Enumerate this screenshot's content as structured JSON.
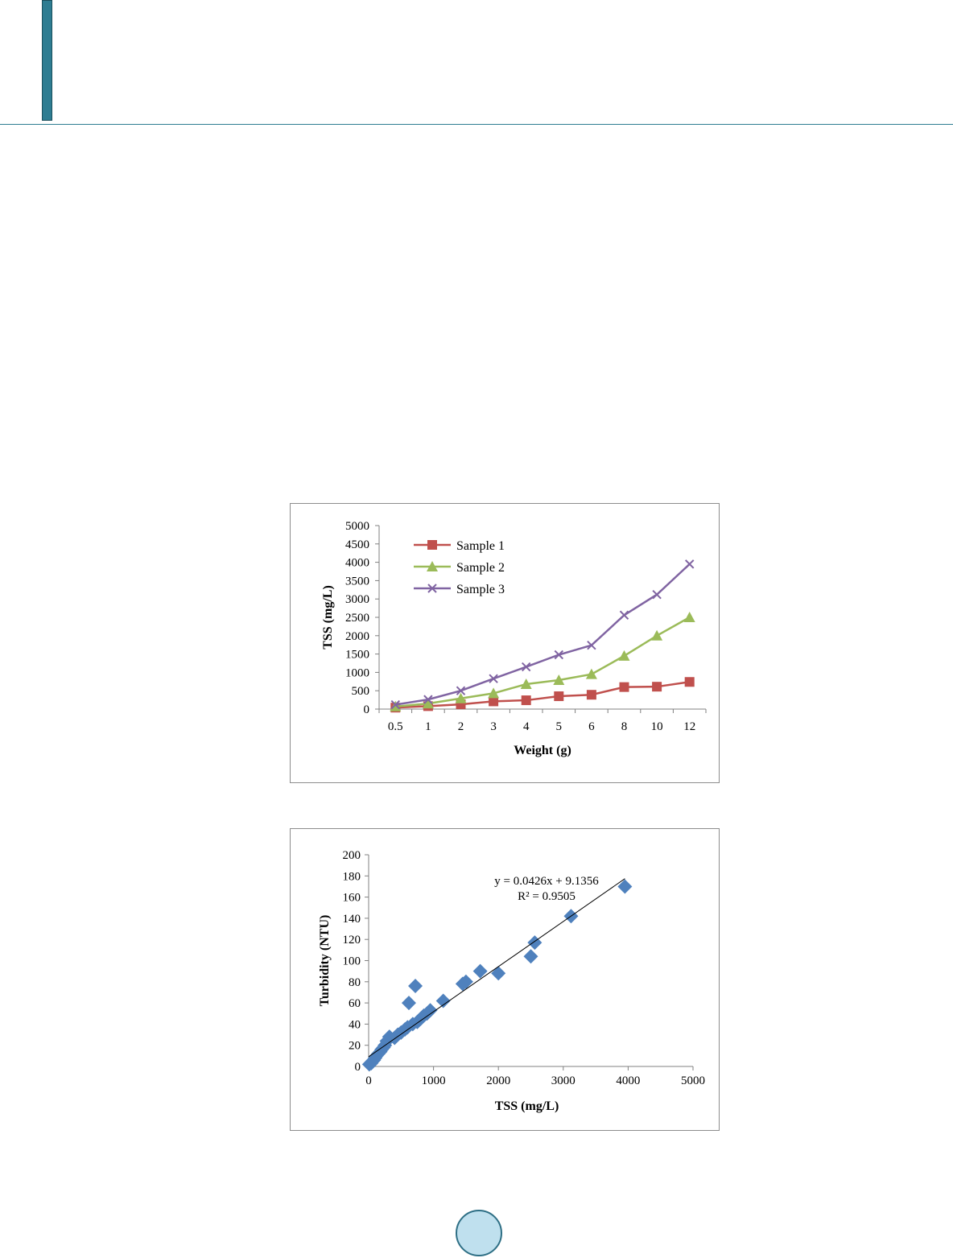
{
  "chart_data": [
    {
      "type": "line",
      "title": "",
      "xlabel": "Weight (g)",
      "ylabel": "TSS (mg/L)",
      "categories": [
        "0.5",
        "1",
        "2",
        "3",
        "4",
        "5",
        "6",
        "8",
        "10",
        "12"
      ],
      "ylim": [
        0,
        5000
      ],
      "yticks": [
        "0",
        "500",
        "1000",
        "1500",
        "2000",
        "2500",
        "3000",
        "3500",
        "4000",
        "4500",
        "5000"
      ],
      "grid": false,
      "legend_position": "top-left",
      "series": [
        {
          "name": "Sample 1",
          "color": "#c0504d",
          "marker": "square",
          "values": [
            40,
            80,
            130,
            210,
            240,
            350,
            390,
            600,
            610,
            740
          ]
        },
        {
          "name": "Sample 2",
          "color": "#9bbb59",
          "marker": "triangle",
          "values": [
            70,
            150,
            290,
            430,
            680,
            790,
            950,
            1450,
            2000,
            2500
          ]
        },
        {
          "name": "Sample 3",
          "color": "#8064a2",
          "marker": "x",
          "values": [
            120,
            260,
            500,
            830,
            1150,
            1480,
            1740,
            2560,
            3120,
            3950
          ]
        }
      ]
    },
    {
      "type": "scatter",
      "title": "",
      "xlabel": "TSS (mg/L)",
      "ylabel": "Turbidity (NTU)",
      "xlim": [
        0,
        5000
      ],
      "ylim": [
        0,
        200
      ],
      "xticks": [
        "0",
        "1000",
        "2000",
        "3000",
        "4000",
        "5000"
      ],
      "yticks": [
        "0",
        "20",
        "40",
        "60",
        "80",
        "100",
        "120",
        "140",
        "160",
        "180",
        "200"
      ],
      "grid": false,
      "marker": "diamond",
      "color": "#4f81bd",
      "trendline": {
        "slope": 0.0426,
        "intercept": 9.1356,
        "color": "#000000"
      },
      "equation_label": "y = 0.0426x + 9.1356",
      "r2_label": "R² = 0.9505",
      "points": [
        [
          10,
          2
        ],
        [
          40,
          3
        ],
        [
          60,
          5
        ],
        [
          80,
          6
        ],
        [
          100,
          8
        ],
        [
          120,
          10
        ],
        [
          150,
          12
        ],
        [
          180,
          14
        ],
        [
          200,
          16
        ],
        [
          230,
          18
        ],
        [
          250,
          20
        ],
        [
          280,
          24
        ],
        [
          320,
          28
        ],
        [
          400,
          27
        ],
        [
          450,
          30
        ],
        [
          500,
          32
        ],
        [
          560,
          35
        ],
        [
          600,
          37
        ],
        [
          620,
          60
        ],
        [
          680,
          40
        ],
        [
          720,
          76
        ],
        [
          750,
          42
        ],
        [
          800,
          45
        ],
        [
          850,
          48
        ],
        [
          900,
          50
        ],
        [
          950,
          53
        ],
        [
          1150,
          62
        ],
        [
          1450,
          78
        ],
        [
          1500,
          80
        ],
        [
          1720,
          90
        ],
        [
          2000,
          88
        ],
        [
          2500,
          104
        ],
        [
          2560,
          117
        ],
        [
          3120,
          142
        ],
        [
          3950,
          170
        ]
      ]
    }
  ]
}
